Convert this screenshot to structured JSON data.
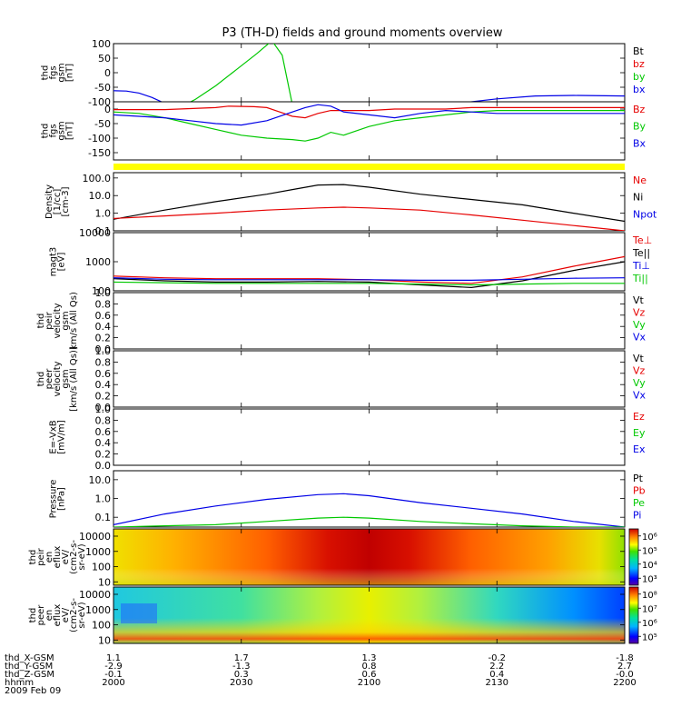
{
  "title": "P3 (TH-D) fields and ground moments overview",
  "colors": {
    "black": "#000000",
    "red": "#e60000",
    "green": "#00c800",
    "blue": "#0000e6",
    "yellow": "#ffff00"
  },
  "chart_data": {
    "type": "line",
    "time_axis": {
      "range": [
        "2000",
        "2200"
      ],
      "row_labels": [
        "thd_X-GSM",
        "thd_Y-GSM",
        "thd_Z-GSM",
        "hhmm",
        "2009 Feb 09"
      ],
      "ticks": [
        {
          "x": "1.1",
          "y": "-2.9",
          "z": "-0.1",
          "hhmm": "2000"
        },
        {
          "x": "1.7",
          "y": "-1.3",
          "z": "0.3",
          "hhmm": "2030"
        },
        {
          "x": "1.3",
          "y": "0.8",
          "z": "0.6",
          "hhmm": "2100"
        },
        {
          "x": "-0.2",
          "y": "2.2",
          "z": "0.4",
          "hhmm": "2130"
        },
        {
          "x": "-1.8",
          "y": "2.7",
          "z": "-0.0",
          "hhmm": "2200"
        }
      ]
    },
    "panels": [
      {
        "id": "fgs",
        "ylabel": [
          "thd",
          "fgs",
          "gsm",
          "[nT]"
        ],
        "scale": "linear",
        "ylim": [
          -100,
          100
        ],
        "ticks": [
          "100",
          "50",
          "0",
          "-50",
          "-100"
        ],
        "legend": [
          {
            "label": "Bt",
            "color": "black"
          },
          {
            "label": "bz",
            "color": "red"
          },
          {
            "label": "by",
            "color": "green"
          },
          {
            "label": "bx",
            "color": "blue"
          }
        ],
        "series": [
          {
            "name": "bx",
            "color": "blue",
            "t": [
              0,
              5,
              10,
              15,
              20,
              60,
              80,
              90,
              100,
              110,
              120,
              135,
              150,
              165,
              180,
              200
            ],
            "y": [
              -62,
              -63,
              -70,
              -85,
              -105,
              -105,
              -105,
              -105,
              -105,
              -105,
              -105,
              -105,
              -90,
              -80,
              -78,
              -80
            ]
          },
          {
            "name": "by",
            "color": "green",
            "t": [
              28,
              32,
              40,
              48,
              56,
              62,
              66,
              70
            ],
            "y": [
              -110,
              -92,
              -45,
              10,
              65,
              110,
              60,
              -110
            ]
          }
        ]
      },
      {
        "id": "fgs_l",
        "ylabel": [
          "thd",
          "fgs",
          "gsm",
          "[nT]"
        ],
        "scale": "linear",
        "ylim": [
          -175,
          25
        ],
        "ticks": [
          "0",
          "-50",
          "-100",
          "-150"
        ],
        "legend": [
          {
            "label": "Bz",
            "color": "red"
          },
          {
            "label": "By",
            "color": "green"
          },
          {
            "label": "Bx",
            "color": "blue"
          }
        ],
        "series": [
          {
            "name": "Bz",
            "color": "red",
            "t": [
              0,
              20,
              40,
              45,
              55,
              60,
              65,
              70,
              75,
              80,
              85,
              90,
              95,
              100,
              110,
              120,
              130,
              140,
              160,
              180,
              200
            ],
            "y": [
              -2,
              -2,
              5,
              10,
              8,
              5,
              -10,
              -25,
              -30,
              -15,
              -5,
              -5,
              -5,
              -5,
              0,
              0,
              0,
              5,
              5,
              5,
              5
            ]
          },
          {
            "name": "By",
            "color": "green",
            "t": [
              0,
              10,
              20,
              30,
              40,
              50,
              60,
              70,
              75,
              80,
              85,
              90,
              100,
              110,
              120,
              130,
              140,
              150,
              160,
              180,
              200
            ],
            "y": [
              -10,
              -15,
              -30,
              -50,
              -70,
              -90,
              -100,
              -105,
              -110,
              -100,
              -80,
              -90,
              -60,
              -40,
              -30,
              -20,
              -10,
              -5,
              -5,
              -5,
              -5
            ]
          },
          {
            "name": "Bx",
            "color": "blue",
            "t": [
              0,
              10,
              20,
              30,
              40,
              50,
              60,
              70,
              75,
              80,
              85,
              90,
              100,
              110,
              120,
              130,
              140,
              150,
              160,
              180,
              200
            ],
            "y": [
              -20,
              -25,
              -30,
              -40,
              -50,
              -55,
              -40,
              -10,
              5,
              15,
              10,
              -10,
              -20,
              -30,
              -15,
              -5,
              -10,
              -15,
              -15,
              -15,
              -15
            ]
          }
        ]
      },
      {
        "id": "density",
        "ylabel": [
          "Density",
          "[1/cc]",
          "[cm-3]"
        ],
        "scale": "log",
        "ylim": [
          0.1,
          200
        ],
        "ticks": [
          "100.0",
          "10.0",
          "1.0",
          "0.1"
        ],
        "legend": [
          {
            "label": "Ne",
            "color": "red"
          },
          {
            "label": "Ni",
            "color": "black"
          },
          {
            "label": "Npot",
            "color": "blue"
          }
        ],
        "series": [
          {
            "name": "Ni",
            "color": "black",
            "t": [
              0,
              20,
              40,
              60,
              70,
              80,
              90,
              100,
              120,
              140,
              160,
              180,
              200
            ],
            "y": [
              0.45,
              1.5,
              4.5,
              12,
              22,
              40,
              42,
              30,
              12,
              6,
              3,
              1,
              0.35
            ]
          },
          {
            "name": "Ne",
            "color": "red",
            "t": [
              0,
              20,
              40,
              60,
              80,
              90,
              100,
              120,
              140,
              160,
              180,
              200
            ],
            "y": [
              0.5,
              0.7,
              1.0,
              1.5,
              2.0,
              2.2,
              2.0,
              1.5,
              0.8,
              0.4,
              0.2,
              0.1
            ]
          }
        ]
      },
      {
        "id": "temp",
        "ylabel": [
          "magt3",
          "[eV]"
        ],
        "scale": "log",
        "ylim": [
          100,
          10000
        ],
        "ticks": [
          "10000",
          "1000",
          "100"
        ],
        "legend": [
          {
            "label": "Te⊥",
            "color": "red"
          },
          {
            "label": "Te||",
            "color": "black"
          },
          {
            "label": "Ti⊥",
            "color": "blue"
          },
          {
            "label": "Ti||",
            "color": "green"
          }
        ],
        "series": [
          {
            "name": "Te⊥",
            "color": "red",
            "t": [
              0,
              20,
              40,
              60,
              80,
              100,
              120,
              140,
              160,
              180,
              200
            ],
            "y": [
              320,
              280,
              260,
              260,
              260,
              240,
              200,
              180,
              300,
              700,
              1500
            ]
          },
          {
            "name": "Te||",
            "color": "black",
            "t": [
              0,
              20,
              40,
              60,
              80,
              100,
              120,
              140,
              160,
              180,
              200
            ],
            "y": [
              260,
              220,
              200,
              200,
              210,
              200,
              160,
              130,
              220,
              500,
              1000
            ]
          },
          {
            "name": "Ti⊥",
            "color": "blue",
            "t": [
              0,
              20,
              40,
              60,
              80,
              100,
              120,
              140,
              160,
              180,
              200
            ],
            "y": [
              280,
              250,
              240,
              240,
              240,
              240,
              230,
              230,
              250,
              270,
              280
            ]
          },
          {
            "name": "Ti||",
            "color": "green",
            "t": [
              0,
              20,
              40,
              60,
              80,
              100,
              120,
              140,
              160,
              180,
              200
            ],
            "y": [
              200,
              190,
              180,
              180,
              180,
              180,
              170,
              160,
              170,
              180,
              180
            ]
          }
        ]
      },
      {
        "id": "peir_v",
        "ylabel": [
          "thd",
          "peir",
          "velocity",
          "gsm",
          "km/s (All Qs)"
        ],
        "scale": "linear",
        "ylim": [
          0,
          1
        ],
        "ticks": [
          "1.0",
          "0.8",
          "0.6",
          "0.4",
          "0.2",
          "0.0"
        ],
        "legend": [
          {
            "label": "Vt",
            "color": "black"
          },
          {
            "label": "Vz",
            "color": "red"
          },
          {
            "label": "Vy",
            "color": "green"
          },
          {
            "label": "Vx",
            "color": "blue"
          }
        ],
        "series": []
      },
      {
        "id": "peer_v",
        "ylabel": [
          "thd",
          "peer",
          "velocity",
          "gsm",
          "[km/s (All Qs)]"
        ],
        "scale": "linear",
        "ylim": [
          0,
          1
        ],
        "ticks": [
          "1.0",
          "0.8",
          "0.6",
          "0.4",
          "0.2",
          "0.0"
        ],
        "legend": [
          {
            "label": "Vt",
            "color": "black"
          },
          {
            "label": "Vz",
            "color": "red"
          },
          {
            "label": "Vy",
            "color": "green"
          },
          {
            "label": "Vx",
            "color": "blue"
          }
        ],
        "series": []
      },
      {
        "id": "efield",
        "ylabel": [
          "E=-VxB",
          "[mV/m]"
        ],
        "scale": "linear",
        "ylim": [
          0,
          1
        ],
        "ticks": [
          "1.0",
          "0.8",
          "0.6",
          "0.4",
          "0.2",
          "0.0"
        ],
        "legend": [
          {
            "label": "Ez",
            "color": "red"
          },
          {
            "label": "Ey",
            "color": "green"
          },
          {
            "label": "Ex",
            "color": "blue"
          }
        ],
        "series": []
      },
      {
        "id": "pressure",
        "ylabel": [
          "Pressure",
          "[nPa]"
        ],
        "scale": "log",
        "ylim": [
          0.03,
          30
        ],
        "ticks": [
          "10.0",
          "1.0",
          "0.1"
        ],
        "legend": [
          {
            "label": "Pt",
            "color": "black"
          },
          {
            "label": "Pb",
            "color": "red"
          },
          {
            "label": "Pe",
            "color": "green"
          },
          {
            "label": "Pi",
            "color": "blue"
          }
        ],
        "series": [
          {
            "name": "Pi",
            "color": "blue",
            "t": [
              0,
              20,
              40,
              60,
              80,
              90,
              100,
              120,
              140,
              160,
              180,
              200
            ],
            "y": [
              0.04,
              0.15,
              0.4,
              0.9,
              1.6,
              1.8,
              1.4,
              0.6,
              0.3,
              0.15,
              0.06,
              0.03
            ]
          },
          {
            "name": "Pe",
            "color": "green",
            "t": [
              0,
              20,
              40,
              60,
              80,
              90,
              100,
              120,
              140,
              160,
              180,
              200
            ],
            "y": [
              0.03,
              0.035,
              0.04,
              0.06,
              0.09,
              0.1,
              0.09,
              0.06,
              0.045,
              0.035,
              0.03,
              0.03
            ]
          }
        ]
      },
      {
        "id": "peir_spec",
        "type": "heatmap",
        "ylabel": [
          "thd",
          "peir",
          "en",
          "eflux",
          "eV/",
          "(cm2-s-",
          "sr-eV)"
        ],
        "scale": "log",
        "ylim": [
          6,
          30000
        ],
        "ticks": [
          "10000",
          "1000",
          "100",
          "10"
        ],
        "colorbar": {
          "scale": "log",
          "range": [
            300,
            3000000
          ],
          "ticks": [
            "10⁶",
            "10⁵",
            "10⁴",
            "10³"
          ]
        }
      },
      {
        "id": "peer_spec",
        "type": "heatmap",
        "ylabel": [
          "thd",
          "peer",
          "en",
          "eflux",
          "eV/",
          "(cm2-s-",
          "sr-eV)"
        ],
        "scale": "log",
        "ylim": [
          6,
          30000
        ],
        "ticks": [
          "10000",
          "1000",
          "100",
          "10"
        ],
        "colorbar": {
          "scale": "log",
          "range": [
            30000,
            300000000
          ],
          "ticks": [
            "10⁸",
            "10⁷",
            "10⁶",
            "10⁵"
          ]
        }
      }
    ]
  }
}
